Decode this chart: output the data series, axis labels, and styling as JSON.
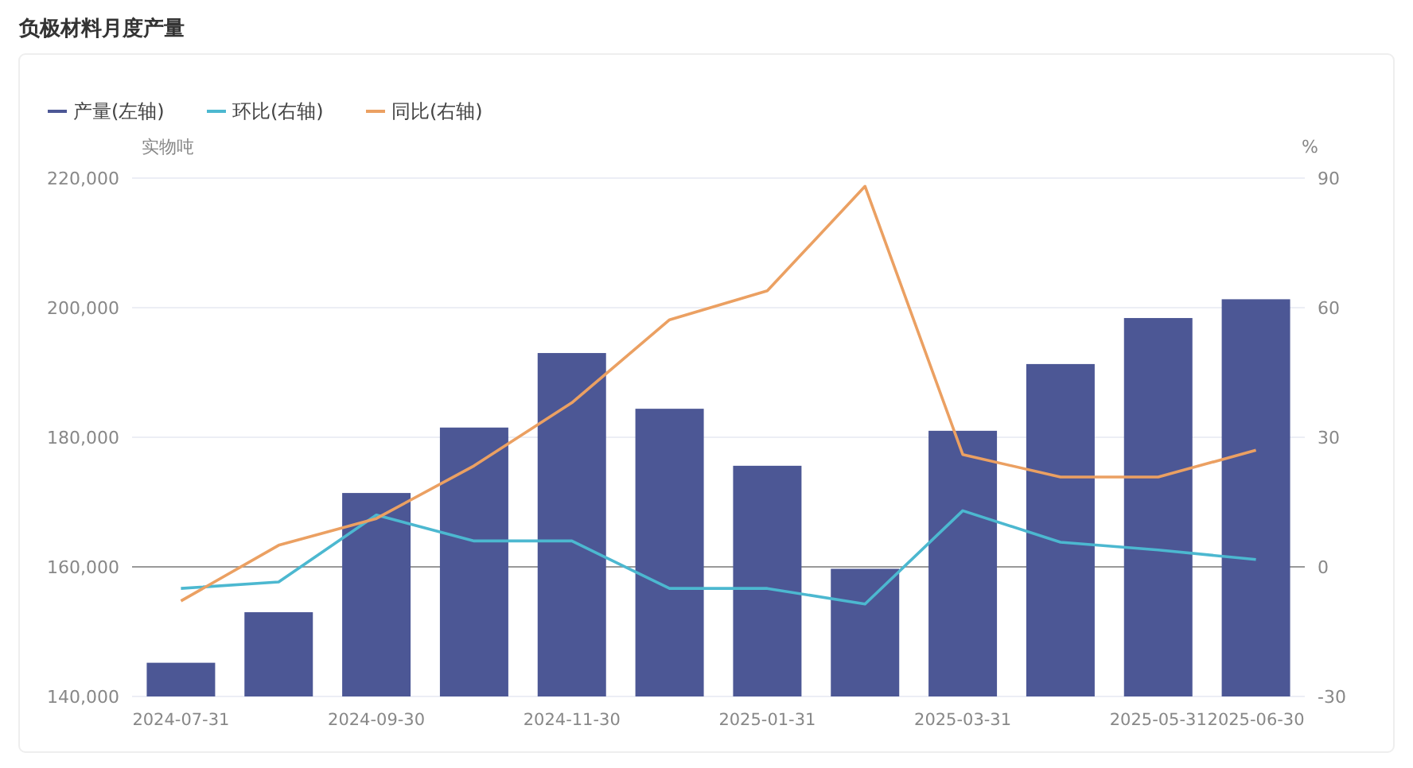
{
  "chart_data": {
    "type": "bar",
    "title": "负极材料月度产量",
    "ylabel": "实物吨",
    "y2label": "%",
    "categories": [
      "2024-07-31",
      null,
      "2024-09-30",
      null,
      "2024-11-30",
      null,
      "2025-01-31",
      null,
      "2025-03-31",
      null,
      "2025-05-31",
      "2025-06-30"
    ],
    "series": [
      {
        "name": "产量(左轴)",
        "color": "#4c5795",
        "values": [
          145200,
          153000,
          171400,
          181500,
          193000,
          184400,
          175600,
          159700,
          181000,
          191300,
          198400,
          201300
        ]
      },
      {
        "name": "环比(右轴)",
        "type": "line",
        "axis": "y2",
        "color": "#4cb8d0",
        "values": [
          -5,
          -3.5,
          12,
          6,
          6,
          -5,
          -5,
          -8.6,
          13,
          5.7,
          3.9,
          1.7
        ]
      },
      {
        "name": "同比(右轴)",
        "type": "line",
        "axis": "y2",
        "color": "#eba062",
        "values": [
          -7.9,
          5,
          11.2,
          23.4,
          38,
          57.2,
          63.9,
          88.1,
          26,
          20.8,
          20.8,
          27
        ]
      }
    ],
    "ylim": [
      140000,
      220000
    ],
    "yticks": [
      {
        "value": 140000,
        "label": "140,000"
      },
      {
        "value": 160000,
        "label": "160,000"
      },
      {
        "value": 180000,
        "label": "180,000"
      },
      {
        "value": 200000,
        "label": "200,000"
      },
      {
        "value": 220000,
        "label": "220,000"
      }
    ],
    "y2lim": [
      -30,
      90
    ],
    "y2ticks": [
      -30,
      0,
      30,
      60,
      90
    ],
    "ref_lines": [
      {
        "axis": "y2",
        "value": 0,
        "color": "#999999"
      }
    ],
    "grid": "y",
    "legend": "top left",
    "marker": "none",
    "line_style": "solid"
  }
}
